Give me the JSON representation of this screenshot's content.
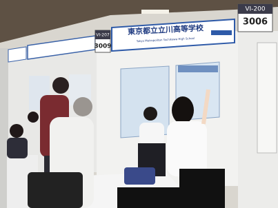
{
  "booth_banner": {
    "title": "東京都立立川高等学校",
    "subtitle": "Tokyo Metropolitan Tachikawa High School"
  },
  "signs": [
    {
      "code": "VI-207",
      "number": "3009"
    },
    {
      "code": "VI-200",
      "number": "3006"
    }
  ]
}
